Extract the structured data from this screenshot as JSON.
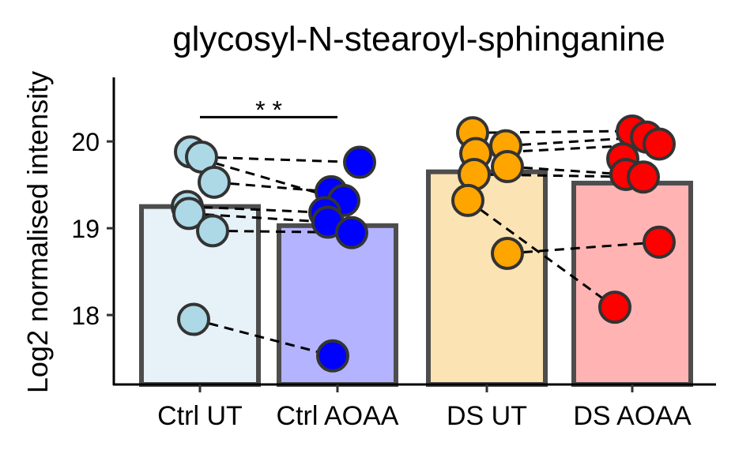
{
  "chart_data": {
    "type": "bar",
    "title": "glycosyl-N-stearoyl-sphinganine",
    "xlabel": "",
    "ylabel": "Log2 normalised intensity",
    "ylim": [
      17.2,
      20.72
    ],
    "yticks": [
      18,
      19,
      20
    ],
    "grid": false,
    "legend": "none",
    "categories": [
      "Ctrl UT",
      "Ctrl AOAA",
      "DS UT",
      "DS AOAA"
    ],
    "values": [
      19.25,
      19.03,
      19.65,
      19.52
    ],
    "bar_fills": [
      "#e6f1f8",
      "#b3b3ff",
      "#fce3b4",
      "#ffb3b3"
    ],
    "point_colors": [
      "#add8e6",
      "#0000ff",
      "#ffa500",
      "#ff0000"
    ],
    "points": [
      [
        19.88,
        19.82,
        19.53,
        19.25,
        19.17,
        18.97,
        17.95
      ],
      [
        19.76,
        19.42,
        19.32,
        19.18,
        19.07,
        18.95,
        17.53
      ],
      [
        20.1,
        19.95,
        19.86,
        19.71,
        19.62,
        19.32,
        18.71
      ],
      [
        20.12,
        20.05,
        19.97,
        19.8,
        19.62,
        19.59,
        18.84,
        18.09
      ]
    ],
    "pairs": [
      [
        0,
        1,
        19.82,
        19.76
      ],
      [
        0,
        1,
        19.8,
        19.34
      ],
      [
        0,
        1,
        19.53,
        19.42
      ],
      [
        0,
        1,
        19.25,
        19.18
      ],
      [
        0,
        1,
        19.17,
        19.07
      ],
      [
        0,
        1,
        18.97,
        18.95
      ],
      [
        0,
        1,
        17.95,
        17.53
      ],
      [
        2,
        3,
        20.1,
        20.12
      ],
      [
        2,
        3,
        19.95,
        20.05
      ],
      [
        2,
        3,
        19.86,
        19.97
      ],
      [
        2,
        3,
        19.71,
        19.62
      ],
      [
        2,
        3,
        19.62,
        19.59
      ],
      [
        2,
        3,
        19.32,
        18.09
      ],
      [
        2,
        3,
        18.71,
        18.84
      ]
    ],
    "significance": {
      "from": 0,
      "to": 1,
      "y": 20.28,
      "label": "* *"
    }
  }
}
